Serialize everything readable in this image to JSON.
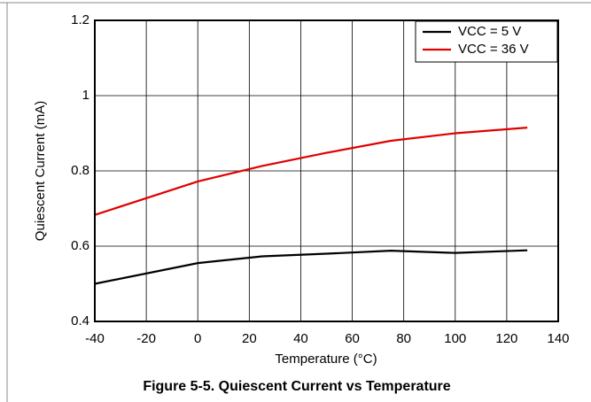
{
  "chart_data": {
    "type": "line",
    "title": "Figure 5-5. Quiescent Current vs Temperature",
    "xlabel": "Temperature (°C)",
    "ylabel": "Quiescent Current (mA)",
    "x": [
      -40,
      0,
      25,
      50,
      75,
      100,
      128
    ],
    "series": [
      {
        "name": "VCC = 5 V",
        "color": "#000000",
        "values": [
          0.5,
          0.555,
          0.573,
          0.58,
          0.588,
          0.582,
          0.589
        ]
      },
      {
        "name": "VCC = 36 V",
        "color": "#e00000",
        "values": [
          0.683,
          0.772,
          0.813,
          0.848,
          0.88,
          0.9,
          0.915
        ]
      }
    ],
    "xlim": [
      -40,
      140
    ],
    "xticks": [
      -40,
      -20,
      0,
      20,
      40,
      60,
      80,
      100,
      120,
      140
    ],
    "ylim": [
      0.4,
      1.2
    ],
    "yticks": [
      0.4,
      0.6,
      0.8,
      1,
      1.2
    ],
    "grid": true,
    "legend": "upper right"
  }
}
